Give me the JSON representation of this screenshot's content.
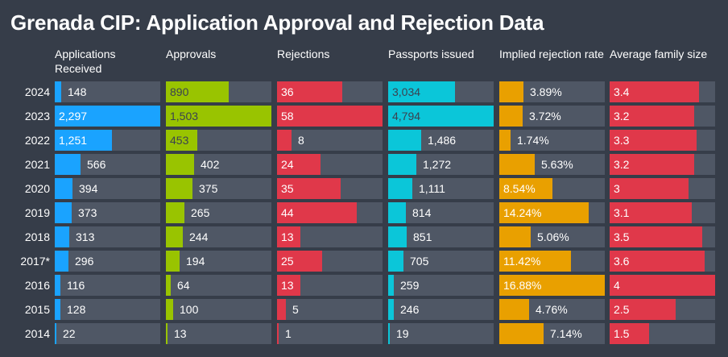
{
  "title": "Grenada CIP: Application Approval and Rejection Data",
  "colors": {
    "background": "#363d49",
    "track": "#4f5765",
    "applications": "#1aa3ff",
    "approvals": "#99c400",
    "rejections": "#e0384a",
    "passports": "#0bc6d9",
    "rejection_rate": "#e9a000",
    "family_size": "#e0384a"
  },
  "chart_data": {
    "type": "table",
    "title": "Grenada CIP: Application Approval and Rejection Data",
    "categories": [
      "2024",
      "2023",
      "2022",
      "2021",
      "2020",
      "2019",
      "2018",
      "2017*",
      "2016",
      "2015",
      "2014"
    ],
    "series": [
      {
        "name": "Applications Received",
        "values": [
          148,
          2297,
          1251,
          566,
          394,
          373,
          313,
          296,
          116,
          128,
          22
        ],
        "labels": [
          "148",
          "2,297",
          "1,251",
          "566",
          "394",
          "373",
          "313",
          "296",
          "116",
          "128",
          "22"
        ],
        "max": 2297
      },
      {
        "name": "Approvals",
        "values": [
          890,
          1503,
          453,
          402,
          375,
          265,
          244,
          194,
          64,
          100,
          13
        ],
        "labels": [
          "890",
          "1,503",
          "453",
          "402",
          "375",
          "265",
          "244",
          "194",
          "64",
          "100",
          "13"
        ],
        "max": 1503
      },
      {
        "name": "Rejections",
        "values": [
          36,
          58,
          8,
          24,
          35,
          44,
          13,
          25,
          13,
          5,
          1
        ],
        "labels": [
          "36",
          "58",
          "8",
          "24",
          "35",
          "44",
          "13",
          "25",
          "13",
          "5",
          "1"
        ],
        "max": 58
      },
      {
        "name": "Passports issued",
        "values": [
          3034,
          4794,
          1486,
          1272,
          1111,
          814,
          851,
          705,
          259,
          246,
          19
        ],
        "labels": [
          "3,034",
          "4,794",
          "1,486",
          "1,272",
          "1,111",
          "814",
          "851",
          "705",
          "259",
          "246",
          "19"
        ],
        "max": 4794
      },
      {
        "name": "Implied rejection rate",
        "values": [
          3.89,
          3.72,
          1.74,
          5.63,
          8.54,
          14.24,
          5.06,
          11.42,
          16.88,
          4.76,
          7.14
        ],
        "labels": [
          "3.89%",
          "3.72%",
          "1.74%",
          "5.63%",
          "8.54%",
          "14.24%",
          "5.06%",
          "11.42%",
          "16.88%",
          "4.76%",
          "7.14%"
        ],
        "max": 16.88
      },
      {
        "name": "Average family size",
        "values": [
          3.4,
          3.2,
          3.3,
          3.2,
          3,
          3.1,
          3.5,
          3.6,
          4,
          2.5,
          1.5
        ],
        "labels": [
          "3.4",
          "3.2",
          "3.3",
          "3.2",
          "3",
          "3.1",
          "3.5",
          "3.6",
          "4",
          "2.5",
          "1.5"
        ],
        "max": 4
      }
    ]
  }
}
